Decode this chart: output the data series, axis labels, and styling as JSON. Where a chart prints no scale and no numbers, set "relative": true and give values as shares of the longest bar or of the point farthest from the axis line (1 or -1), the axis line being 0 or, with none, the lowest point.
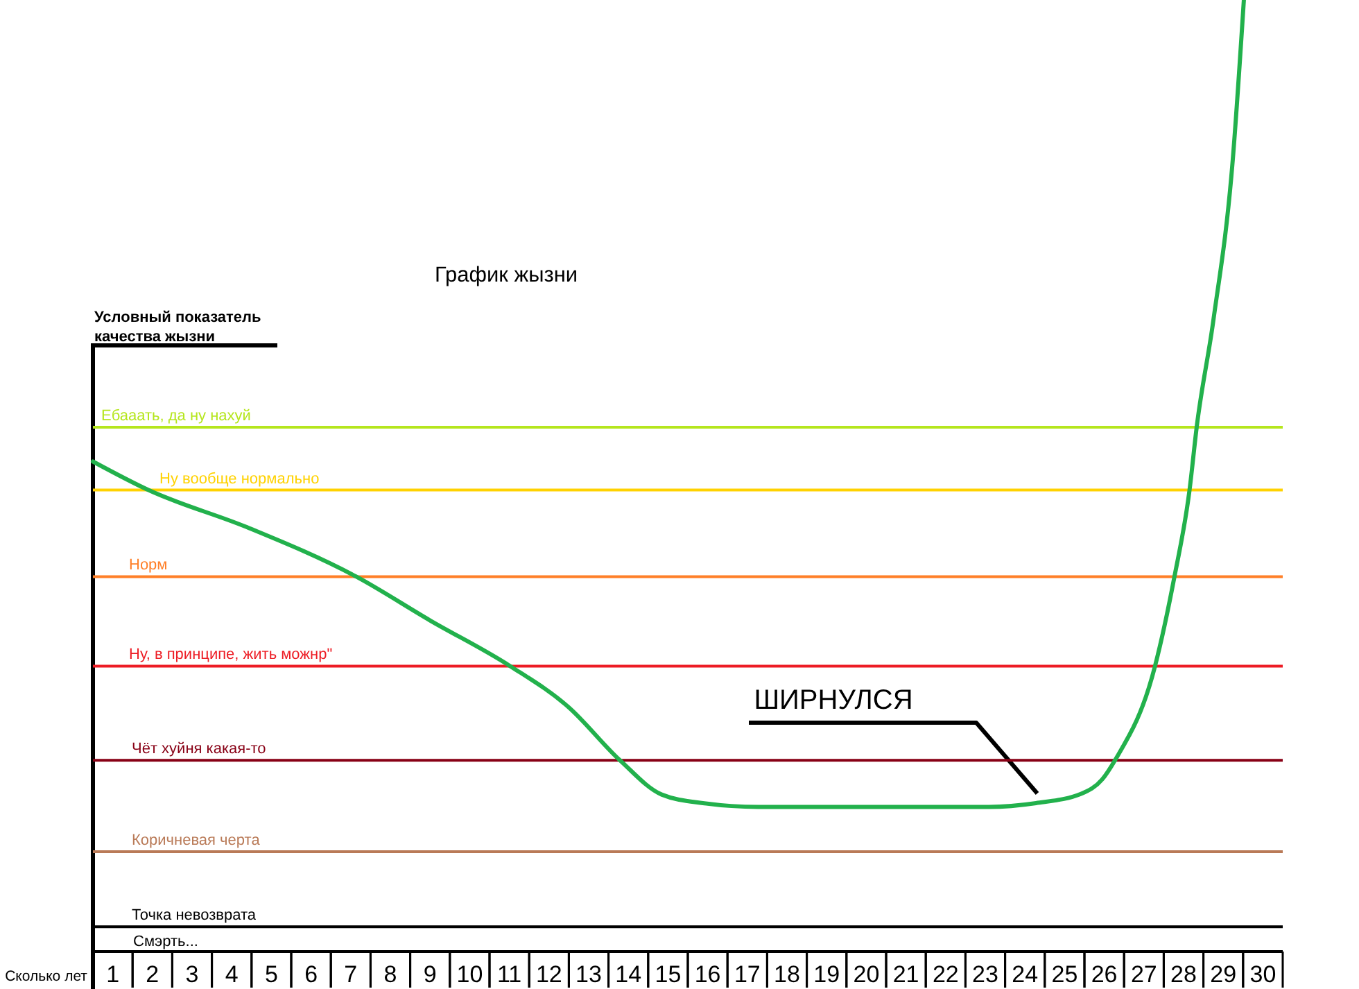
{
  "chart_data": {
    "type": "line",
    "title": "График жызни",
    "ylabel": "Условный показатель качества жызни",
    "xlabel": "Сколько лет",
    "relative": true,
    "x": [
      0.5,
      1.9,
      4.38,
      7.14,
      9.0,
      11.02,
      12.49,
      13.79,
      14.84,
      15.88,
      17.28,
      23.09,
      24.28,
      25.43,
      25.95,
      26.27,
      27.28,
      27.77,
      28.15,
      28.33,
      28.75,
      29.24,
      29.52
    ],
    "xlim": [
      0.5,
      30.5
    ],
    "xticks": [
      1,
      2,
      3,
      4,
      5,
      6,
      7,
      8,
      9,
      10,
      11,
      12,
      13,
      14,
      15,
      16,
      17,
      18,
      19,
      20,
      21,
      22,
      23,
      24,
      25,
      26,
      27,
      28,
      29,
      30
    ],
    "series": [
      {
        "color": "#22b14c",
        "values": [
          0.515,
          0.485,
          0.446,
          0.394,
          0.348,
          0.3,
          0.257,
          0.201,
          0.165,
          0.156,
          0.152,
          0.152,
          0.156,
          0.166,
          0.181,
          0.201,
          0.3,
          0.394,
          0.485,
          0.551,
          0.663,
          0.832,
          1.0
        ]
      }
    ],
    "ref_lines": [
      {
        "axis": "y",
        "value": 0.551,
        "label": "Ебааать, да ну нахуй",
        "color": "#b5e61d"
      },
      {
        "axis": "y",
        "value": 0.485,
        "label": "Ну вообще нормально",
        "color": "#ffd200"
      },
      {
        "axis": "y",
        "value": 0.394,
        "label": "Норм",
        "color": "#ff7f27"
      },
      {
        "axis": "y",
        "value": 0.3,
        "label": "Ну, в принципе, жить можнр\"",
        "color": "#ed1c24"
      },
      {
        "axis": "y",
        "value": 0.201,
        "label": "Чёт хуйня какая-то",
        "color": "#880015"
      },
      {
        "axis": "y",
        "value": 0.105,
        "label": "Коричневая черта",
        "color": "#b97a57"
      },
      {
        "axis": "y",
        "value": 0.026,
        "label": "Точка невозврата",
        "color": "#000000"
      }
    ],
    "annotations": [
      "ШИРНУЛСЯ",
      "Смэрть..."
    ]
  }
}
